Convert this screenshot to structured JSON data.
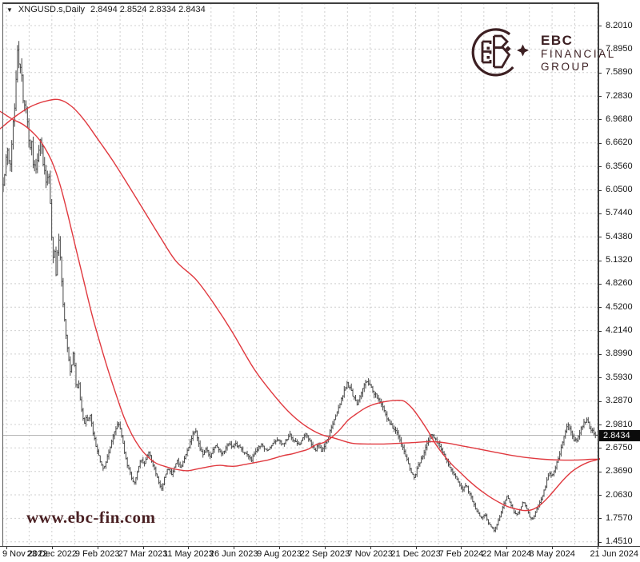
{
  "titlebar": {
    "dropdown_icon": "▼",
    "symbol": "XNGUSD.s,Daily",
    "ohlc_values": "2.8494 2.8524 2.8334 2.8434"
  },
  "logo": {
    "line1": "EBC",
    "line2": "FINANCIAL",
    "line3": "GROUP",
    "color": "#3d2023"
  },
  "watermark": {
    "text": "www.ebc-fin.com"
  },
  "chart_data": {
    "type": "candlestick",
    "symbol": "XNGUSD.s",
    "timeframe": "Daily",
    "title": "XNGUSD.s,Daily",
    "ohlc": {
      "open": "2.8494",
      "high": "2.8524",
      "low": "2.8334",
      "close": "2.8434"
    },
    "current_price": "2.8434",
    "bar_count": 417,
    "grid": true,
    "legend_position": "none",
    "y_axis": {
      "top_price": 8.201,
      "bottom_price": 1.451,
      "labels": [
        "8.2010",
        "7.8950",
        "7.5890",
        "7.2830",
        "6.9680",
        "6.6620",
        "6.3560",
        "6.0500",
        "5.7440",
        "5.4380",
        "5.1320",
        "4.8260",
        "4.5200",
        "4.2140",
        "3.8990",
        "3.5930",
        "3.2870",
        "2.9810",
        "2.6750",
        "2.3690",
        "2.0630",
        "1.7570",
        "1.4510"
      ]
    },
    "x_axis": {
      "labels": [
        "9 Nov 2022",
        "23 Dec 2022",
        "9 Feb 2023",
        "27 Mar 2023",
        "11 May 2023",
        "26 Jun 2023",
        "9 Aug 2023",
        "22 Sep 2023",
        "7 Nov 2023",
        "21 Dec 2023",
        "7 Feb 2024",
        "22 Mar 2024",
        "8 May 2024",
        "21 Jun 2024"
      ]
    },
    "close_path": [
      [
        4,
        6.15
      ],
      [
        6,
        6.3
      ],
      [
        8,
        6.5
      ],
      [
        10,
        6.6
      ],
      [
        12,
        6.3
      ],
      [
        14,
        6.5
      ],
      [
        16,
        6.85
      ],
      [
        18,
        7.1
      ],
      [
        20,
        7.45
      ],
      [
        22,
        7.95
      ],
      [
        24,
        7.62
      ],
      [
        26,
        7.68
      ],
      [
        28,
        7.4
      ],
      [
        30,
        7.1
      ],
      [
        32,
        7.2
      ],
      [
        34,
        6.98
      ],
      [
        36,
        6.72
      ],
      [
        38,
        6.6
      ],
      [
        40,
        6.68
      ],
      [
        42,
        6.25
      ],
      [
        44,
        6.4
      ],
      [
        46,
        6.3
      ],
      [
        48,
        6.55
      ],
      [
        50,
        6.75
      ],
      [
        52,
        6.6
      ],
      [
        54,
        6.4
      ],
      [
        56,
        6.28
      ],
      [
        58,
        6.12
      ],
      [
        60,
        6.3
      ],
      [
        62,
        6.1
      ],
      [
        64,
        5.55
      ],
      [
        66,
        5.1
      ],
      [
        68,
        5.3
      ],
      [
        70,
        4.95
      ],
      [
        72,
        5.25
      ],
      [
        74,
        5.45
      ],
      [
        76,
        5.05
      ],
      [
        78,
        4.7
      ],
      [
        80,
        4.4
      ],
      [
        82,
        4.2
      ],
      [
        84,
        4.0
      ],
      [
        86,
        3.85
      ],
      [
        88,
        3.65
      ],
      [
        90,
        3.8
      ],
      [
        92,
        3.95
      ],
      [
        94,
        3.6
      ],
      [
        96,
        3.4
      ],
      [
        98,
        3.55
      ],
      [
        100,
        3.35
      ],
      [
        102,
        3.2
      ],
      [
        104,
        3.05
      ],
      [
        106,
        2.98
      ],
      [
        108,
        3.1
      ],
      [
        110,
        3.0
      ],
      [
        112,
        3.15
      ],
      [
        114,
        3.05
      ],
      [
        116,
        2.9
      ],
      [
        118,
        2.8
      ],
      [
        120,
        2.7
      ],
      [
        122,
        2.62
      ],
      [
        124,
        2.55
      ],
      [
        126,
        2.48
      ],
      [
        128,
        2.42
      ],
      [
        130,
        2.4
      ],
      [
        132,
        2.48
      ],
      [
        134,
        2.56
      ],
      [
        136,
        2.62
      ],
      [
        138,
        2.7
      ],
      [
        140,
        2.78
      ],
      [
        142,
        2.85
      ],
      [
        144,
        2.92
      ],
      [
        146,
        2.95
      ],
      [
        148,
        3.0
      ],
      [
        150,
        2.95
      ],
      [
        152,
        2.82
      ],
      [
        154,
        2.72
      ],
      [
        156,
        2.6
      ],
      [
        158,
        2.5
      ],
      [
        160,
        2.42
      ],
      [
        162,
        2.36
      ],
      [
        164,
        2.3
      ],
      [
        166,
        2.25
      ],
      [
        168,
        2.22
      ],
      [
        170,
        2.28
      ],
      [
        172,
        2.38
      ],
      [
        174,
        2.46
      ],
      [
        176,
        2.52
      ],
      [
        178,
        2.5
      ],
      [
        180,
        2.45
      ],
      [
        182,
        2.52
      ],
      [
        184,
        2.58
      ],
      [
        186,
        2.62
      ],
      [
        188,
        2.56
      ],
      [
        190,
        2.5
      ],
      [
        192,
        2.44
      ],
      [
        194,
        2.38
      ],
      [
        196,
        2.3
      ],
      [
        198,
        2.24
      ],
      [
        200,
        2.18
      ],
      [
        202,
        2.15
      ],
      [
        204,
        2.22
      ],
      [
        206,
        2.3
      ],
      [
        208,
        2.36
      ],
      [
        210,
        2.42
      ],
      [
        212,
        2.38
      ],
      [
        214,
        2.32
      ],
      [
        216,
        2.38
      ],
      [
        218,
        2.44
      ],
      [
        220,
        2.48
      ],
      [
        222,
        2.52
      ],
      [
        224,
        2.46
      ],
      [
        226,
        2.4
      ],
      [
        228,
        2.46
      ],
      [
        230,
        2.52
      ],
      [
        232,
        2.58
      ],
      [
        234,
        2.64
      ],
      [
        236,
        2.7
      ],
      [
        238,
        2.76
      ],
      [
        240,
        2.82
      ],
      [
        242,
        2.88
      ],
      [
        244,
        2.92
      ],
      [
        246,
        2.85
      ],
      [
        248,
        2.75
      ],
      [
        250,
        2.68
      ],
      [
        252,
        2.62
      ],
      [
        254,
        2.58
      ],
      [
        256,
        2.64
      ],
      [
        258,
        2.68
      ],
      [
        260,
        2.6
      ],
      [
        262,
        2.55
      ],
      [
        264,
        2.6
      ],
      [
        266,
        2.65
      ],
      [
        268,
        2.7
      ],
      [
        270,
        2.72
      ],
      [
        274,
        2.66
      ],
      [
        278,
        2.6
      ],
      [
        282,
        2.68
      ],
      [
        286,
        2.74
      ],
      [
        290,
        2.7
      ],
      [
        294,
        2.74
      ],
      [
        298,
        2.7
      ],
      [
        302,
        2.66
      ],
      [
        306,
        2.6
      ],
      [
        310,
        2.58
      ],
      [
        314,
        2.52
      ],
      [
        318,
        2.6
      ],
      [
        322,
        2.66
      ],
      [
        326,
        2.72
      ],
      [
        330,
        2.68
      ],
      [
        334,
        2.64
      ],
      [
        338,
        2.7
      ],
      [
        342,
        2.74
      ],
      [
        346,
        2.8
      ],
      [
        350,
        2.76
      ],
      [
        354,
        2.72
      ],
      [
        358,
        2.78
      ],
      [
        362,
        2.85
      ],
      [
        366,
        2.8
      ],
      [
        370,
        2.76
      ],
      [
        374,
        2.7
      ],
      [
        378,
        2.8
      ],
      [
        382,
        2.88
      ],
      [
        386,
        2.8
      ],
      [
        390,
        2.72
      ],
      [
        394,
        2.64
      ],
      [
        398,
        2.72
      ],
      [
        402,
        2.62
      ],
      [
        406,
        2.72
      ],
      [
        410,
        2.82
      ],
      [
        414,
        2.94
      ],
      [
        418,
        3.06
      ],
      [
        422,
        3.18
      ],
      [
        426,
        3.3
      ],
      [
        430,
        3.42
      ],
      [
        434,
        3.52
      ],
      [
        438,
        3.44
      ],
      [
        442,
        3.34
      ],
      [
        446,
        3.26
      ],
      [
        450,
        3.34
      ],
      [
        454,
        3.46
      ],
      [
        458,
        3.58
      ],
      [
        462,
        3.5
      ],
      [
        466,
        3.42
      ],
      [
        470,
        3.36
      ],
      [
        474,
        3.3
      ],
      [
        478,
        3.22
      ],
      [
        482,
        3.12
      ],
      [
        486,
        3.02
      ],
      [
        490,
        2.96
      ],
      [
        494,
        2.9
      ],
      [
        498,
        2.84
      ],
      [
        502,
        2.72
      ],
      [
        506,
        2.6
      ],
      [
        510,
        2.48
      ],
      [
        514,
        2.36
      ],
      [
        518,
        2.28
      ],
      [
        522,
        2.42
      ],
      [
        526,
        2.52
      ],
      [
        530,
        2.62
      ],
      [
        534,
        2.74
      ],
      [
        538,
        2.86
      ],
      [
        542,
        2.82
      ],
      [
        546,
        2.76
      ],
      [
        550,
        2.7
      ],
      [
        554,
        2.62
      ],
      [
        558,
        2.52
      ],
      [
        562,
        2.42
      ],
      [
        566,
        2.35
      ],
      [
        570,
        2.3
      ],
      [
        574,
        2.22
      ],
      [
        578,
        2.12
      ],
      [
        582,
        2.2
      ],
      [
        586,
        2.1
      ],
      [
        590,
        2.0
      ],
      [
        594,
        1.9
      ],
      [
        598,
        1.82
      ],
      [
        602,
        1.76
      ],
      [
        606,
        1.82
      ],
      [
        610,
        1.7
      ],
      [
        614,
        1.64
      ],
      [
        618,
        1.6
      ],
      [
        622,
        1.7
      ],
      [
        626,
        1.82
      ],
      [
        630,
        1.95
      ],
      [
        634,
        2.05
      ],
      [
        638,
        1.95
      ],
      [
        642,
        1.85
      ],
      [
        646,
        1.8
      ],
      [
        650,
        1.88
      ],
      [
        654,
        1.98
      ],
      [
        658,
        1.9
      ],
      [
        662,
        1.78
      ],
      [
        666,
        1.74
      ],
      [
        670,
        1.85
      ],
      [
        674,
        1.95
      ],
      [
        678,
        2.05
      ],
      [
        682,
        2.18
      ],
      [
        686,
        2.35
      ],
      [
        690,
        2.32
      ],
      [
        694,
        2.42
      ],
      [
        698,
        2.55
      ],
      [
        702,
        2.7
      ],
      [
        706,
        2.85
      ],
      [
        708,
        2.95
      ],
      [
        710,
        3.0
      ],
      [
        714,
        2.88
      ],
      [
        718,
        2.76
      ],
      [
        722,
        2.8
      ],
      [
        726,
        2.92
      ],
      [
        730,
        3.0
      ],
      [
        734,
        3.05
      ],
      [
        738,
        2.92
      ],
      [
        742,
        2.88
      ],
      [
        746,
        2.8434
      ]
    ],
    "ma_fast": [
      [
        0,
        7.08
      ],
      [
        15,
        6.98
      ],
      [
        30,
        6.9
      ],
      [
        45,
        6.76
      ],
      [
        55,
        6.62
      ],
      [
        65,
        6.42
      ],
      [
        75,
        6.12
      ],
      [
        85,
        5.72
      ],
      [
        95,
        5.28
      ],
      [
        105,
        4.85
      ],
      [
        115,
        4.42
      ],
      [
        125,
        4.05
      ],
      [
        135,
        3.7
      ],
      [
        145,
        3.38
      ],
      [
        155,
        3.08
      ],
      [
        165,
        2.85
      ],
      [
        175,
        2.68
      ],
      [
        185,
        2.56
      ],
      [
        195,
        2.48
      ],
      [
        205,
        2.44
      ],
      [
        215,
        2.41
      ],
      [
        225,
        2.39
      ],
      [
        235,
        2.38
      ],
      [
        245,
        2.4
      ],
      [
        255,
        2.42
      ],
      [
        265,
        2.44
      ],
      [
        275,
        2.45
      ],
      [
        285,
        2.44
      ],
      [
        295,
        2.44
      ],
      [
        305,
        2.46
      ],
      [
        315,
        2.48
      ],
      [
        325,
        2.5
      ],
      [
        335,
        2.52
      ],
      [
        345,
        2.55
      ],
      [
        355,
        2.58
      ],
      [
        365,
        2.6
      ],
      [
        375,
        2.63
      ],
      [
        385,
        2.66
      ],
      [
        395,
        2.72
      ],
      [
        405,
        2.75
      ],
      [
        415,
        2.82
      ],
      [
        425,
        2.92
      ],
      [
        435,
        3.04
      ],
      [
        445,
        3.12
      ],
      [
        455,
        3.19
      ],
      [
        465,
        3.24
      ],
      [
        475,
        3.27
      ],
      [
        485,
        3.29
      ],
      [
        495,
        3.3
      ],
      [
        505,
        3.29
      ],
      [
        515,
        3.2
      ],
      [
        525,
        3.06
      ],
      [
        535,
        2.9
      ],
      [
        545,
        2.72
      ],
      [
        555,
        2.58
      ],
      [
        565,
        2.46
      ],
      [
        575,
        2.36
      ],
      [
        585,
        2.26
      ],
      [
        595,
        2.17
      ],
      [
        605,
        2.09
      ],
      [
        615,
        2.02
      ],
      [
        625,
        1.96
      ],
      [
        635,
        1.91
      ],
      [
        645,
        1.88
      ],
      [
        655,
        1.86
      ],
      [
        665,
        1.87
      ],
      [
        675,
        1.93
      ],
      [
        685,
        2.03
      ],
      [
        695,
        2.15
      ],
      [
        705,
        2.27
      ],
      [
        715,
        2.37
      ],
      [
        725,
        2.44
      ],
      [
        735,
        2.49
      ],
      [
        745,
        2.52
      ],
      [
        750,
        2.54
      ]
    ],
    "ma_slow": [
      [
        0,
        6.85
      ],
      [
        20,
        7.02
      ],
      [
        40,
        7.15
      ],
      [
        60,
        7.22
      ],
      [
        75,
        7.23
      ],
      [
        90,
        7.14
      ],
      [
        105,
        6.97
      ],
      [
        120,
        6.75
      ],
      [
        140,
        6.45
      ],
      [
        160,
        6.12
      ],
      [
        180,
        5.78
      ],
      [
        200,
        5.44
      ],
      [
        220,
        5.12
      ],
      [
        245,
        4.88
      ],
      [
        267,
        4.57
      ],
      [
        290,
        4.2
      ],
      [
        317,
        3.72
      ],
      [
        340,
        3.4
      ],
      [
        360,
        3.16
      ],
      [
        380,
        2.98
      ],
      [
        400,
        2.86
      ],
      [
        420,
        2.8
      ],
      [
        440,
        2.74
      ],
      [
        460,
        2.73
      ],
      [
        480,
        2.73
      ],
      [
        500,
        2.74
      ],
      [
        520,
        2.75
      ],
      [
        540,
        2.76
      ],
      [
        560,
        2.74
      ],
      [
        580,
        2.7
      ],
      [
        600,
        2.66
      ],
      [
        620,
        2.62
      ],
      [
        640,
        2.58
      ],
      [
        660,
        2.55
      ],
      [
        680,
        2.53
      ],
      [
        700,
        2.52
      ],
      [
        720,
        2.52
      ],
      [
        740,
        2.53
      ],
      [
        750,
        2.53
      ]
    ],
    "colors": {
      "bar": "#474747",
      "ma": "#e0393f",
      "grid": "#cfcfcf",
      "price_line": "#b5b5b5",
      "badge_bg": "#0b0b0b",
      "badge_text": "#ffffff",
      "axis_text": "#141414",
      "brand": "#3d2023"
    }
  }
}
